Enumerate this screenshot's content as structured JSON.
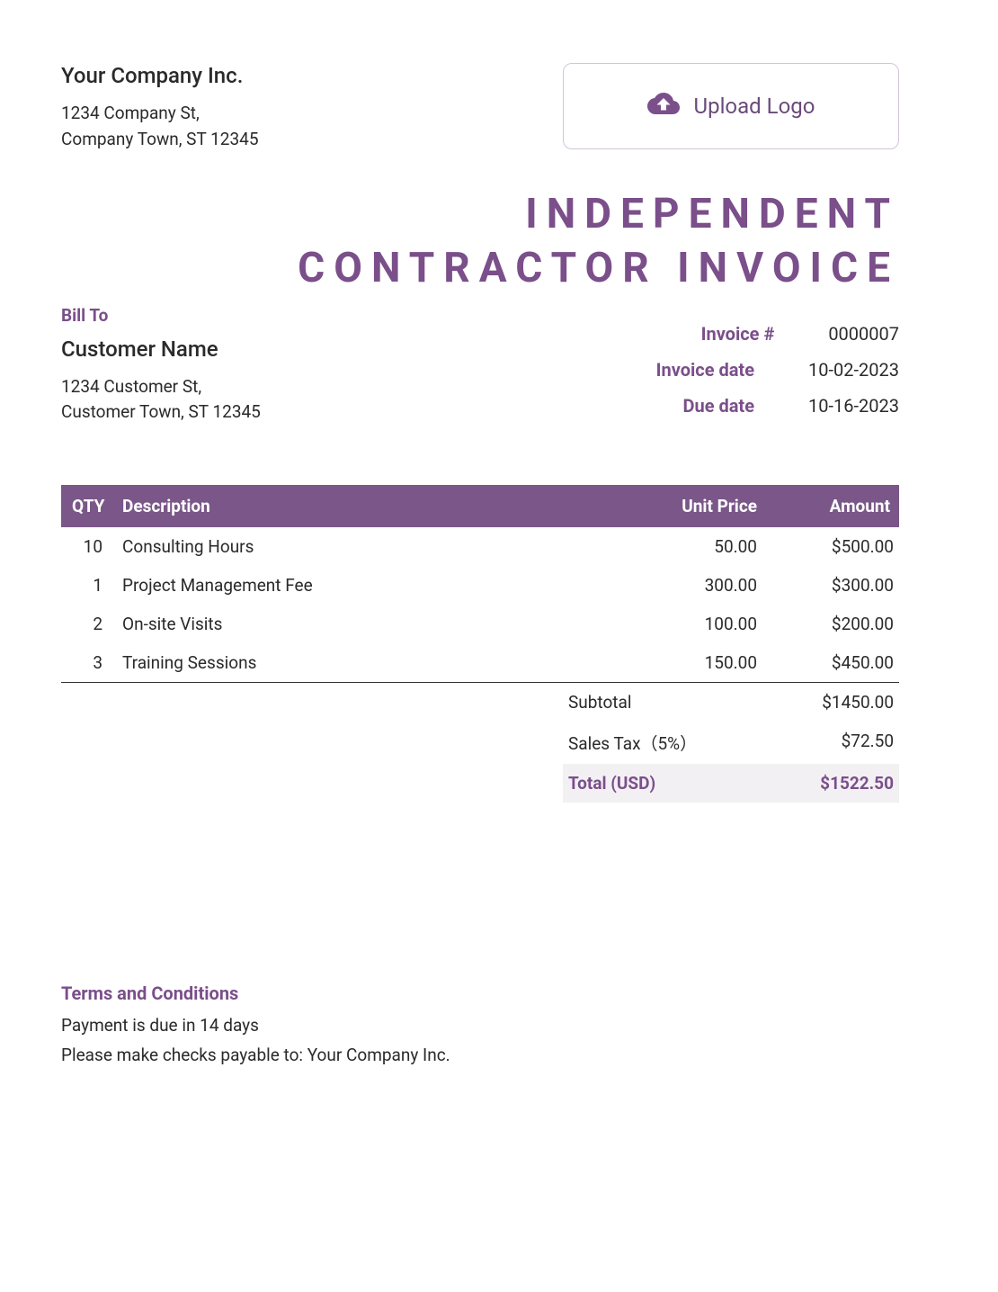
{
  "colors": {
    "accent": "#7a4f8a",
    "header_bg": "#7a5788",
    "total_bg": "#f3f0f4",
    "text": "#2a2a2a",
    "border": "#d2c5db"
  },
  "company": {
    "name": "Your Company Inc.",
    "address_line1": "1234 Company St,",
    "address_line2": "Company Town, ST 12345"
  },
  "upload": {
    "label": "Upload Logo"
  },
  "title_line1": "INDEPENDENT",
  "title_line2": "CONTRACTOR INVOICE",
  "billto": {
    "label": "Bill To",
    "name": "Customer Name",
    "address_line1": "1234 Customer St,",
    "address_line2": "Customer Town, ST 12345"
  },
  "meta": {
    "invoice_num_label": "Invoice #",
    "invoice_num": "0000007",
    "invoice_date_label": "Invoice date",
    "invoice_date": "10-02-2023",
    "due_date_label": "Due date",
    "due_date": "10-16-2023"
  },
  "table": {
    "headers": {
      "qty": "QTY",
      "desc": "Description",
      "unit": "Unit Price",
      "amount": "Amount"
    },
    "rows": [
      {
        "qty": "10",
        "desc": "Consulting Hours",
        "unit": "50.00",
        "amount": "$500.00"
      },
      {
        "qty": "1",
        "desc": "Project Management Fee",
        "unit": "300.00",
        "amount": "$300.00"
      },
      {
        "qty": "2",
        "desc": "On-site Visits",
        "unit": "100.00",
        "amount": "$200.00"
      },
      {
        "qty": "3",
        "desc": "Training Sessions",
        "unit": "150.00",
        "amount": "$450.00"
      }
    ]
  },
  "totals": {
    "subtotal_label": "Subtotal",
    "subtotal": "$1450.00",
    "tax_label": "Sales Tax（5%）",
    "tax": "$72.50",
    "total_label": "Total (USD)",
    "total": "$1522.50"
  },
  "terms": {
    "header": "Terms and Conditions",
    "line1": "Payment is due in 14 days",
    "line2": "Please make checks payable to: Your Company Inc."
  }
}
